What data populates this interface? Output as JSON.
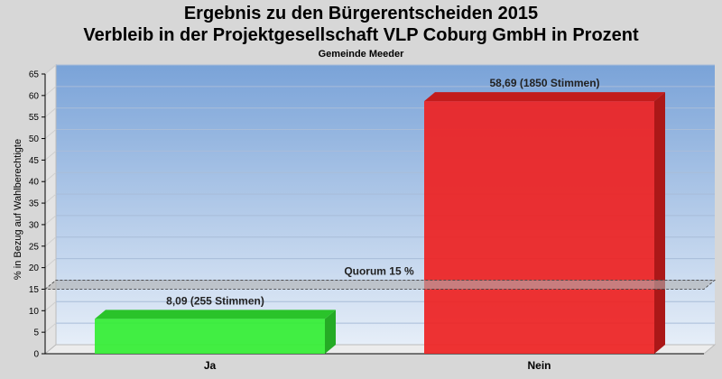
{
  "chart_data": {
    "type": "bar",
    "title": "Ergebnis zu den Bürgerentscheiden 2015",
    "subtitle": "Verbleib in der Projektgesellschaft VLP Coburg GmbH in Prozent",
    "caption": "Gemeinde Meeder",
    "ylabel": "% in Bezug auf Wahlberechtigte",
    "categories": [
      "Ja",
      "Nein"
    ],
    "values": [
      8.09,
      58.69
    ],
    "data_labels": [
      "8,09 (255 Stimmen)",
      "58,69 (1850 Stimmen)"
    ],
    "colors": [
      "#33ee33",
      "#ee2222"
    ],
    "ylim": [
      0,
      65
    ],
    "yticks": [
      0,
      5,
      10,
      15,
      20,
      25,
      30,
      35,
      40,
      45,
      50,
      55,
      60,
      65
    ],
    "threshold": {
      "value": 15,
      "label": "Quorum 15 %"
    },
    "grid": true,
    "legend": "none"
  }
}
